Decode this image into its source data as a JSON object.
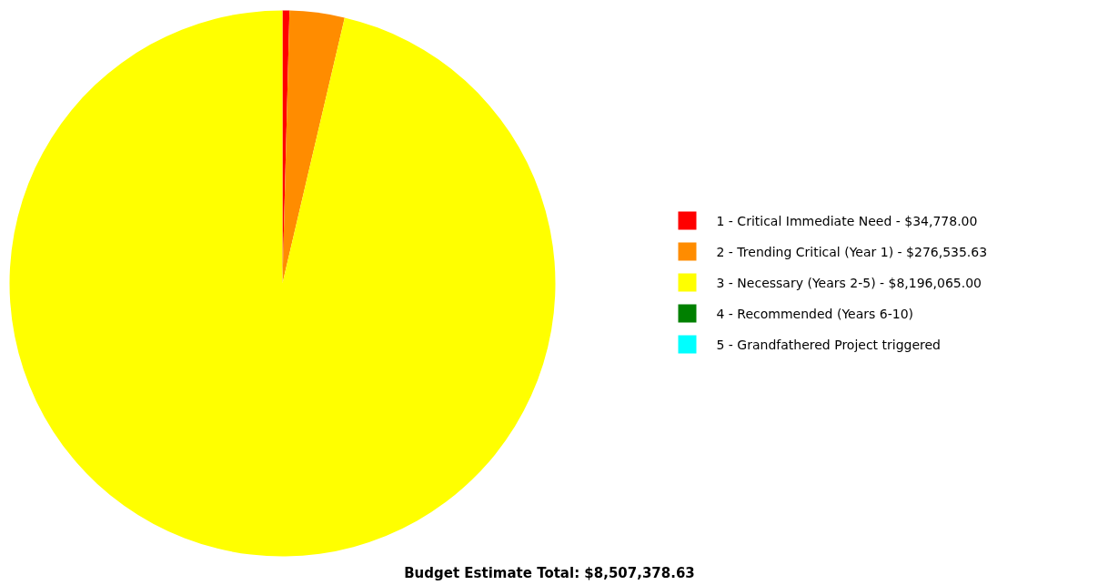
{
  "chart_data": {
    "type": "pie",
    "title": "Budget Estimate Total: $8,507,378.63",
    "categories": [
      "1 - Critical Immediate Need  - $34,778.00",
      "2 - Trending Critical (Year 1)  - $276,535.63",
      "3 - Necessary  (Years 2-5)  - $8,196,065.00",
      "4 - Recommended  (Years 6-10)",
      "5 - Grandfathered  Project triggered"
    ],
    "values": [
      0.41,
      3.25,
      96.34,
      0,
      0
    ],
    "colors": [
      "#ff0000",
      "#ff8c00",
      "#ffff00",
      "#008000",
      "#00ffff"
    ],
    "legend": "right"
  }
}
